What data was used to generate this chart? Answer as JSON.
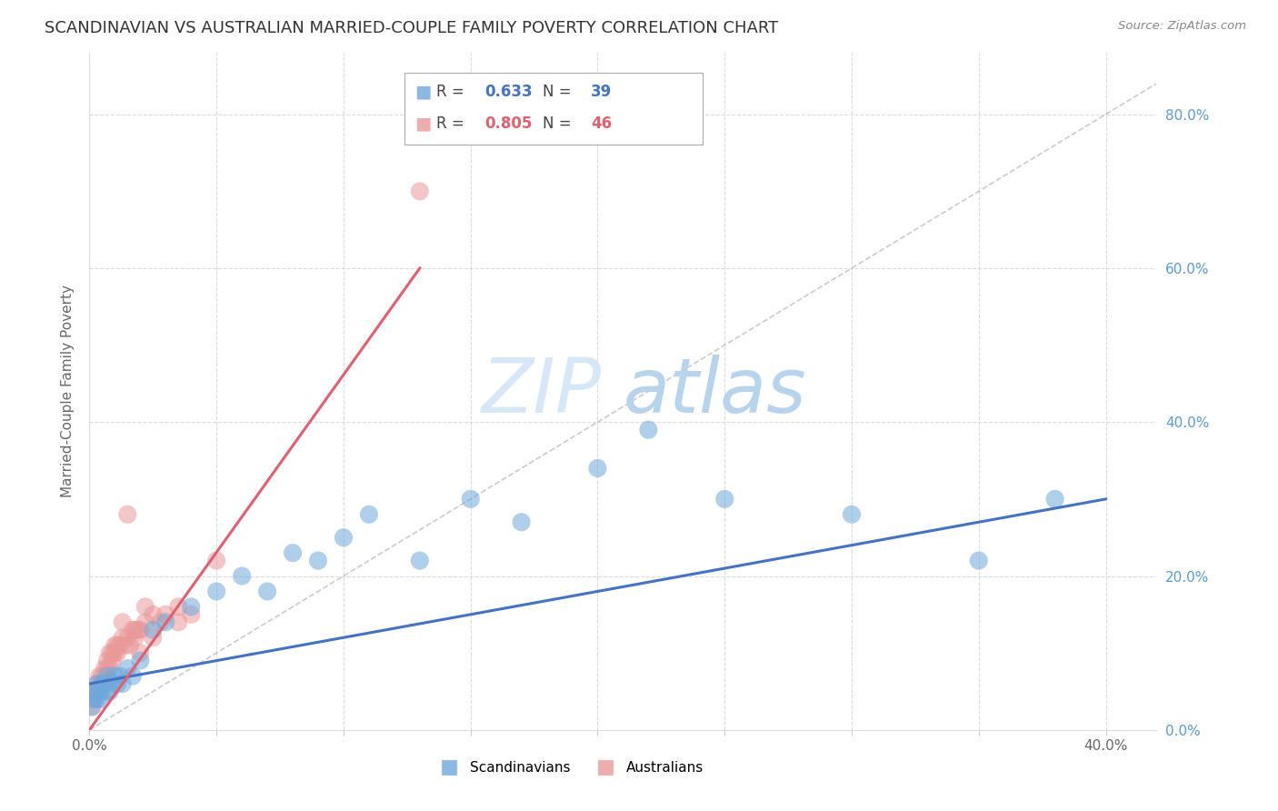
{
  "title": "SCANDINAVIAN VS AUSTRALIAN MARRIED-COUPLE FAMILY POVERTY CORRELATION CHART",
  "source": "Source: ZipAtlas.com",
  "ylabel": "Married-Couple Family Poverty",
  "xlim": [
    0.0,
    0.42
  ],
  "ylim": [
    0.0,
    0.88
  ],
  "xticks": [
    0.0,
    0.05,
    0.1,
    0.15,
    0.2,
    0.25,
    0.3,
    0.35,
    0.4
  ],
  "yticks": [
    0.0,
    0.2,
    0.4,
    0.6,
    0.8
  ],
  "ytick_labels": [
    "0.0%",
    "20.0%",
    "40.0%",
    "60.0%",
    "80.0%"
  ],
  "color_scan_fill": "#6fa8dc",
  "color_aus_fill": "#ea9999",
  "color_scan_line": "#4472c4",
  "color_aus_line": "#e06070",
  "color_diag": "#aaaaaa",
  "color_grid": "#cccccc",
  "color_watermark": "#d6e8f8",
  "legend_r1": "0.633",
  "legend_n1": "39",
  "legend_r2": "0.805",
  "legend_n2": "46",
  "label_scan": "Scandinavians",
  "label_aus": "Australians",
  "background": "#ffffff",
  "scan_x": [
    0.001,
    0.002,
    0.002,
    0.003,
    0.003,
    0.004,
    0.005,
    0.005,
    0.006,
    0.007,
    0.007,
    0.008,
    0.009,
    0.01,
    0.011,
    0.012,
    0.013,
    0.015,
    0.017,
    0.02,
    0.025,
    0.03,
    0.04,
    0.05,
    0.06,
    0.07,
    0.08,
    0.09,
    0.1,
    0.11,
    0.13,
    0.15,
    0.17,
    0.2,
    0.22,
    0.25,
    0.3,
    0.35,
    0.38
  ],
  "scan_y": [
    0.03,
    0.04,
    0.05,
    0.04,
    0.06,
    0.05,
    0.06,
    0.04,
    0.06,
    0.05,
    0.07,
    0.05,
    0.06,
    0.07,
    0.06,
    0.07,
    0.06,
    0.08,
    0.07,
    0.09,
    0.13,
    0.14,
    0.16,
    0.18,
    0.2,
    0.18,
    0.23,
    0.22,
    0.25,
    0.28,
    0.22,
    0.3,
    0.27,
    0.34,
    0.39,
    0.3,
    0.28,
    0.22,
    0.3
  ],
  "aus_x": [
    0.001,
    0.001,
    0.002,
    0.002,
    0.003,
    0.003,
    0.004,
    0.004,
    0.005,
    0.005,
    0.006,
    0.006,
    0.007,
    0.007,
    0.008,
    0.008,
    0.009,
    0.009,
    0.01,
    0.01,
    0.011,
    0.011,
    0.012,
    0.013,
    0.014,
    0.015,
    0.016,
    0.017,
    0.018,
    0.019,
    0.02,
    0.022,
    0.025,
    0.028,
    0.03,
    0.035,
    0.04,
    0.015,
    0.02,
    0.025,
    0.018,
    0.022,
    0.013,
    0.035,
    0.05,
    0.13
  ],
  "aus_y": [
    0.03,
    0.04,
    0.04,
    0.05,
    0.05,
    0.06,
    0.05,
    0.07,
    0.06,
    0.07,
    0.07,
    0.08,
    0.08,
    0.09,
    0.08,
    0.1,
    0.09,
    0.1,
    0.1,
    0.11,
    0.1,
    0.11,
    0.11,
    0.12,
    0.11,
    0.12,
    0.11,
    0.13,
    0.12,
    0.13,
    0.13,
    0.14,
    0.15,
    0.14,
    0.15,
    0.14,
    0.15,
    0.28,
    0.1,
    0.12,
    0.13,
    0.16,
    0.14,
    0.16,
    0.22,
    0.7
  ],
  "scan_trend_x": [
    0.0,
    0.4
  ],
  "scan_trend_y": [
    0.06,
    0.3
  ],
  "aus_trend_x": [
    0.0,
    0.13
  ],
  "aus_trend_y": [
    0.0,
    0.6
  ]
}
